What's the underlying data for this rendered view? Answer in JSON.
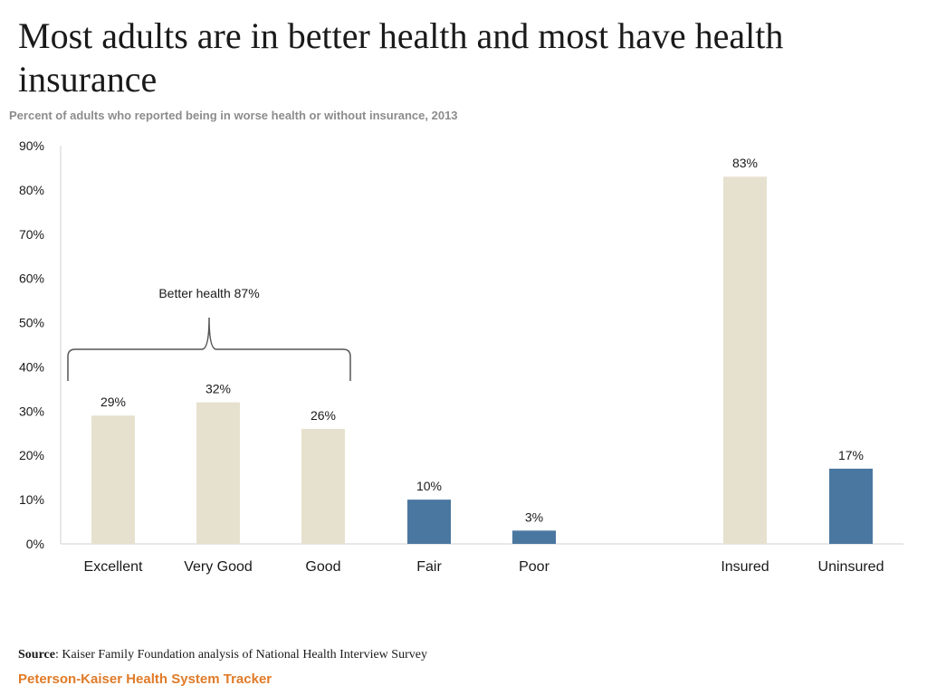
{
  "header": {
    "title": "Most adults are in better health and most have health insurance",
    "subtitle": "Percent of adults who reported being in worse health or without insurance, 2013"
  },
  "chart_data": {
    "type": "bar",
    "title": "Most adults are in better health and most have health insurance",
    "subtitle": "Percent of adults who reported being in worse health or without insurance, 2013",
    "categories": [
      "Excellent",
      "Very Good",
      "Good",
      "Fair",
      "Poor",
      "Insured",
      "Uninsured"
    ],
    "values": [
      29,
      32,
      26,
      10,
      3,
      83,
      17
    ],
    "data_labels": [
      "29%",
      "32%",
      "26%",
      "10%",
      "3%",
      "83%",
      "17%"
    ],
    "bar_colors": [
      "#e6e1cf",
      "#e6e1cf",
      "#e6e1cf",
      "#4a77a0",
      "#4a77a0",
      "#e6e1cf",
      "#4a77a0"
    ],
    "ylim": [
      0,
      90
    ],
    "yticks": [
      0,
      10,
      20,
      30,
      40,
      50,
      60,
      70,
      80,
      90
    ],
    "ytick_labels": [
      "0%",
      "10%",
      "20%",
      "30%",
      "40%",
      "50%",
      "60%",
      "70%",
      "80%",
      "90%"
    ],
    "xlabel": "",
    "ylabel": "",
    "grid": false,
    "annotation": {
      "text": "Better health 87%",
      "spans": [
        "Excellent",
        "Very Good",
        "Good"
      ]
    }
  },
  "footer": {
    "source_label": "Source",
    "source_text": ": Kaiser Family Foundation analysis of National Health Interview Survey",
    "brand": "Peterson-Kaiser Health System Tracker"
  },
  "colors": {
    "light_bar": "#e6e1cf",
    "dark_bar": "#4a77a0",
    "brand": "#e07b28",
    "subtitle": "#8c8c8c"
  }
}
